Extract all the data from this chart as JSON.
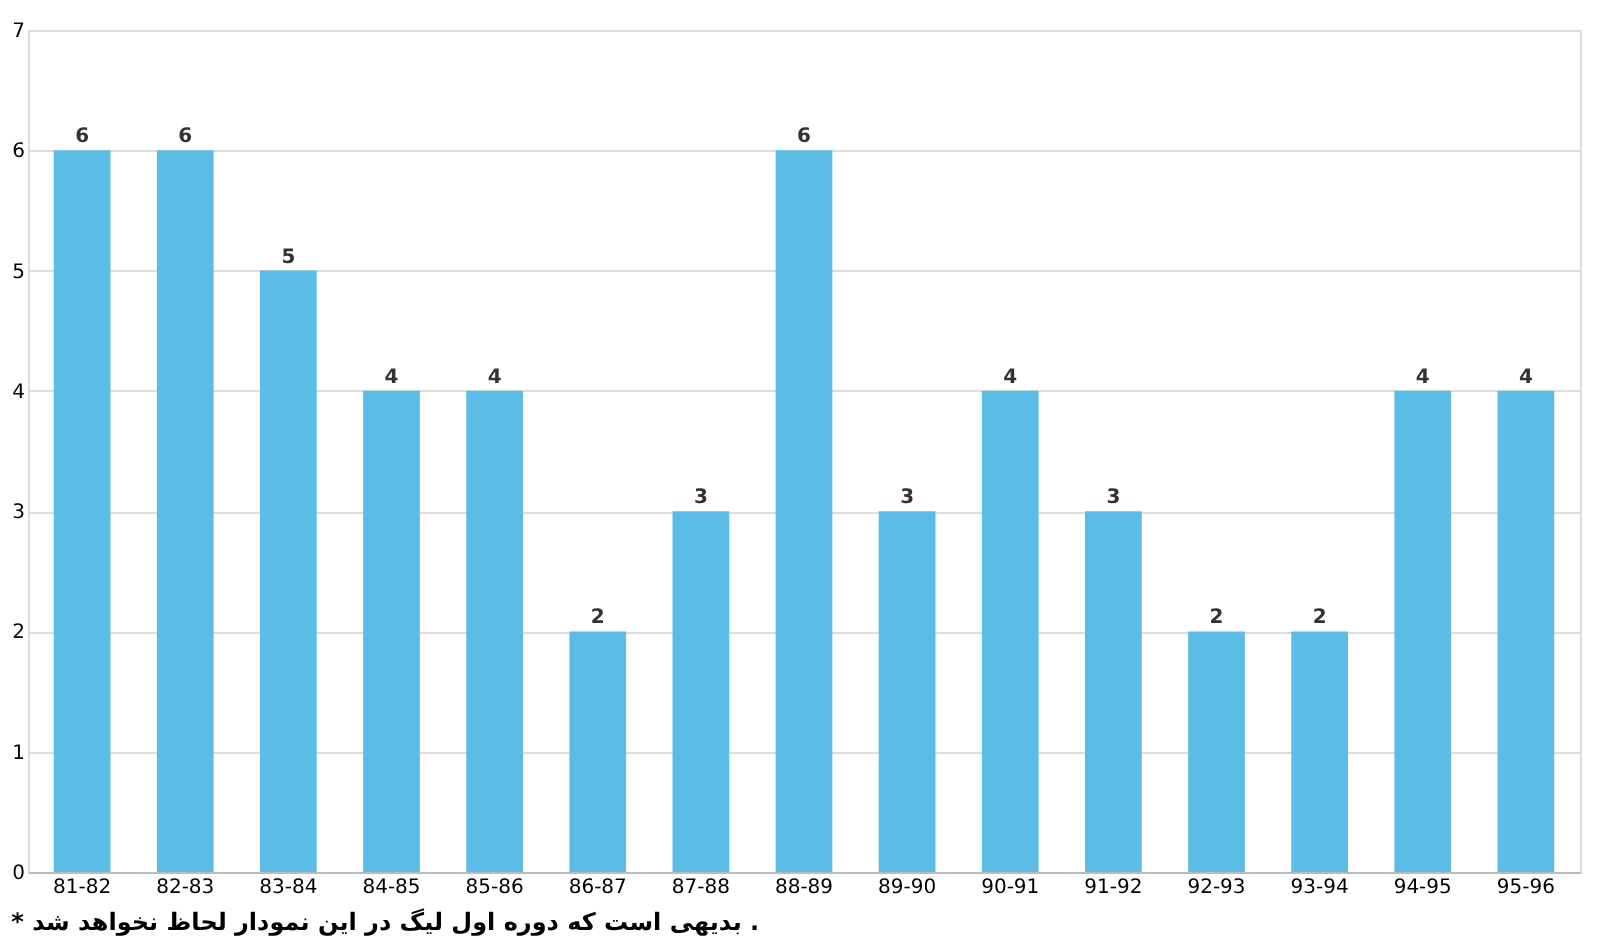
{
  "chart_data": {
    "type": "bar",
    "categories": [
      "81-82",
      "82-83",
      "83-84",
      "84-85",
      "85-86",
      "86-87",
      "87-88",
      "88-89",
      "89-90",
      "90-91",
      "91-92",
      "92-93",
      "93-94",
      "94-95",
      "95-96"
    ],
    "values": [
      6,
      6,
      5,
      4,
      4,
      2,
      3,
      6,
      3,
      4,
      3,
      2,
      2,
      4,
      4
    ],
    "color": "#5bbde6",
    "ylim": [
      0,
      7
    ],
    "yticks": [
      0,
      1,
      2,
      3,
      4,
      5,
      6,
      7
    ],
    "grid": "y",
    "data_labels": true,
    "annotations": [
      "* بدیهی است که دوره اول لیگ در این نمودار لحاظ نخواهد شد ."
    ]
  }
}
